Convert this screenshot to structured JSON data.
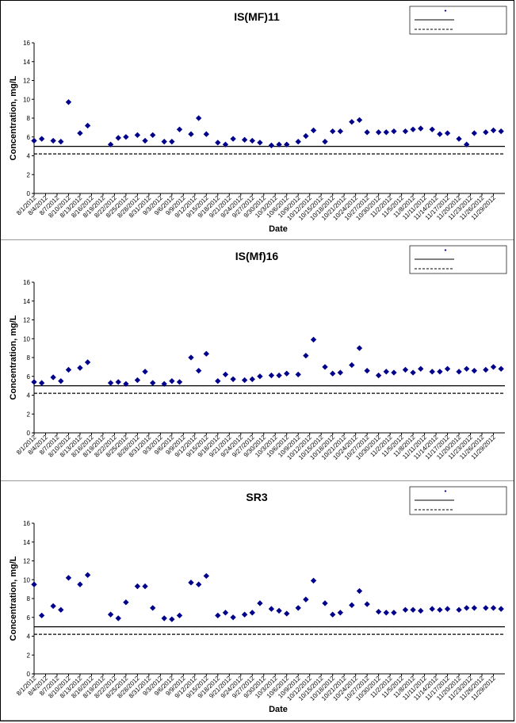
{
  "chart_data": [
    {
      "type": "scatter",
      "title": "IS(MF)11",
      "xlabel": "Date",
      "ylabel": "Concentration, mg/L",
      "ylim": [
        0,
        16
      ],
      "yticks": [
        0,
        2,
        4,
        6,
        8,
        10,
        12,
        14,
        16
      ],
      "x_tick_labels": [
        "8/1/2012",
        "8/4/2012",
        "8/7/2012",
        "8/10/2012",
        "8/13/2012",
        "8/16/2012",
        "8/19/2012",
        "8/22/2012",
        "8/25/2012",
        "8/28/2012",
        "8/31/2012",
        "9/3/2012",
        "9/6/2012",
        "9/9/2012",
        "9/12/2012",
        "9/15/2012",
        "9/18/2012",
        "9/21/2012",
        "9/24/2012",
        "9/27/2012",
        "9/30/2012",
        "10/3/2012",
        "10/6/2012",
        "10/9/2012",
        "10/12/2012",
        "10/15/2012",
        "10/18/2012",
        "10/21/2012",
        "10/24/2012",
        "10/27/2012",
        "10/30/2012",
        "11/2/2012",
        "11/5/2012",
        "11/8/2012",
        "11/11/2012",
        "11/14/2012",
        "11/17/2012",
        "11/20/2012",
        "11/23/2012",
        "11/26/2012",
        "11/29/2012"
      ],
      "legend": {
        "placement": "top-right",
        "entries": [
          "",
          "",
          ""
        ]
      },
      "ref_lines": [
        {
          "style": "solid",
          "y": 5.0
        },
        {
          "style": "dashed",
          "y": 4.2
        }
      ],
      "series": [
        {
          "x": [
            "8/1/2012",
            "8/3/2012",
            "8/6/2012",
            "8/8/2012",
            "8/10/2012",
            "8/13/2012",
            "8/15/2012",
            "8/21/2012",
            "8/23/2012",
            "8/25/2012",
            "8/28/2012",
            "8/30/2012",
            "9/1/2012",
            "9/4/2012",
            "9/6/2012",
            "9/8/2012",
            "9/11/2012",
            "9/13/2012",
            "9/15/2012",
            "9/18/2012",
            "9/20/2012",
            "9/22/2012",
            "9/25/2012",
            "9/27/2012",
            "9/29/2012",
            "10/2/2012",
            "10/4/2012",
            "10/6/2012",
            "10/9/2012",
            "10/11/2012",
            "10/13/2012",
            "10/16/2012",
            "10/18/2012",
            "10/20/2012",
            "10/23/2012",
            "10/25/2012",
            "10/27/2012",
            "10/30/2012",
            "11/1/2012",
            "11/3/2012",
            "11/6/2012",
            "11/8/2012",
            "11/10/2012",
            "11/13/2012",
            "11/15/2012",
            "11/17/2012",
            "11/20/2012",
            "11/22/2012",
            "11/24/2012",
            "11/27/2012",
            "11/29/2012",
            "12/1/2012"
          ],
          "y": [
            5.6,
            5.8,
            5.6,
            5.5,
            9.7,
            6.4,
            7.2,
            5.2,
            5.9,
            6.0,
            6.2,
            5.6,
            6.2,
            5.5,
            5.5,
            6.8,
            6.3,
            8.0,
            6.3,
            5.4,
            5.2,
            5.8,
            5.7,
            5.6,
            5.4,
            5.1,
            5.2,
            5.2,
            5.5,
            6.1,
            6.7,
            5.5,
            6.6,
            6.6,
            7.6,
            7.8,
            6.5,
            6.5,
            6.5,
            6.6,
            6.6,
            6.8,
            6.9,
            6.8,
            6.3,
            6.4,
            5.8,
            5.2,
            6.4,
            6.5,
            6.7,
            6.6
          ]
        }
      ]
    },
    {
      "type": "scatter",
      "title": "IS(Mf)16",
      "xlabel": "",
      "ylabel": "Concentration, mg/L",
      "ylim": [
        0,
        16
      ],
      "yticks": [
        0,
        2,
        4,
        6,
        8,
        10,
        12,
        14,
        16
      ],
      "x_tick_labels": [
        "8/1/2012",
        "8/4/2012",
        "8/7/2012",
        "8/10/2012",
        "8/13/2012",
        "8/16/2012",
        "8/19/2012",
        "8/22/2012",
        "8/25/2012",
        "8/28/2012",
        "8/31/2012",
        "9/3/2012",
        "9/6/2012",
        "9/9/2012",
        "9/12/2012",
        "9/15/2012",
        "9/18/2012",
        "9/21/2012",
        "9/24/2012",
        "9/27/2012",
        "9/30/2012",
        "10/3/2012",
        "10/6/2012",
        "10/9/2012",
        "10/12/2012",
        "10/15/2012",
        "10/18/2012",
        "10/21/2012",
        "10/24/2012",
        "10/27/2012",
        "10/30/2012",
        "11/2/2012",
        "11/5/2012",
        "11/8/2012",
        "11/11/2012",
        "11/14/2012",
        "11/17/2012",
        "11/20/2012",
        "11/23/2012",
        "11/26/2012",
        "11/29/2012"
      ],
      "legend": {
        "placement": "top-right",
        "entries": [
          "",
          "",
          ""
        ]
      },
      "ref_lines": [
        {
          "style": "solid",
          "y": 5.0
        },
        {
          "style": "dashed",
          "y": 4.2
        }
      ],
      "series": [
        {
          "x": [
            "8/1/2012",
            "8/3/2012",
            "8/6/2012",
            "8/8/2012",
            "8/10/2012",
            "8/13/2012",
            "8/15/2012",
            "8/21/2012",
            "8/23/2012",
            "8/25/2012",
            "8/28/2012",
            "8/30/2012",
            "9/1/2012",
            "9/4/2012",
            "9/6/2012",
            "9/8/2012",
            "9/11/2012",
            "9/13/2012",
            "9/15/2012",
            "9/18/2012",
            "9/20/2012",
            "9/22/2012",
            "9/25/2012",
            "9/27/2012",
            "9/29/2012",
            "10/2/2012",
            "10/4/2012",
            "10/6/2012",
            "10/9/2012",
            "10/11/2012",
            "10/13/2012",
            "10/16/2012",
            "10/18/2012",
            "10/20/2012",
            "10/23/2012",
            "10/25/2012",
            "10/27/2012",
            "10/30/2012",
            "11/1/2012",
            "11/3/2012",
            "11/6/2012",
            "11/8/2012",
            "11/10/2012",
            "11/13/2012",
            "11/15/2012",
            "11/17/2012",
            "11/20/2012",
            "11/22/2012",
            "11/24/2012",
            "11/27/2012",
            "11/29/2012",
            "12/1/2012"
          ],
          "y": [
            5.4,
            5.3,
            5.9,
            5.5,
            6.7,
            6.9,
            7.5,
            5.3,
            5.4,
            5.2,
            5.6,
            6.5,
            5.3,
            5.2,
            5.5,
            5.4,
            8.0,
            6.6,
            8.4,
            5.5,
            6.2,
            5.7,
            5.6,
            5.7,
            6.0,
            6.1,
            6.1,
            6.3,
            6.2,
            8.2,
            9.9,
            7.0,
            6.3,
            6.4,
            7.2,
            9.0,
            6.6,
            6.1,
            6.5,
            6.4,
            6.7,
            6.4,
            6.8,
            6.5,
            6.5,
            6.8,
            6.5,
            6.8,
            6.6,
            6.7,
            7.0,
            6.8
          ]
        }
      ]
    },
    {
      "type": "scatter",
      "title": "SR3",
      "xlabel": "Date",
      "ylabel": "Concentration, mg/L",
      "ylim": [
        0,
        16
      ],
      "yticks": [
        0,
        2,
        4,
        6,
        8,
        10,
        12,
        14,
        16
      ],
      "x_tick_labels": [
        "8/1/2012",
        "8/4/2012",
        "8/7/2012",
        "8/10/2012",
        "8/13/2012",
        "8/16/2012",
        "8/19/2012",
        "8/22/2012",
        "8/25/2012",
        "8/28/2012",
        "8/31/2012",
        "9/3/2012",
        "9/6/2012",
        "9/9/2012",
        "9/12/2012",
        "9/15/2012",
        "9/18/2012",
        "9/21/2012",
        "9/24/2012",
        "9/27/2012",
        "9/30/2012",
        "10/3/2012",
        "10/6/2012",
        "10/9/2012",
        "10/12/2012",
        "10/15/2012",
        "10/18/2012",
        "10/21/2012",
        "10/24/2012",
        "10/27/2012",
        "10/30/2012",
        "11/2/2012",
        "11/5/2012",
        "11/8/2012",
        "11/11/2012",
        "11/14/2012",
        "11/17/2012",
        "11/20/2012",
        "11/23/2012",
        "11/26/2012",
        "11/29/2012"
      ],
      "legend": {
        "placement": "top-right",
        "entries": [
          "",
          "",
          ""
        ]
      },
      "ref_lines": [
        {
          "style": "solid",
          "y": 5.0
        },
        {
          "style": "dashed",
          "y": 4.2
        }
      ],
      "series": [
        {
          "x": [
            "8/1/2012",
            "8/3/2012",
            "8/6/2012",
            "8/8/2012",
            "8/10/2012",
            "8/13/2012",
            "8/15/2012",
            "8/21/2012",
            "8/23/2012",
            "8/25/2012",
            "8/28/2012",
            "8/30/2012",
            "9/1/2012",
            "9/4/2012",
            "9/6/2012",
            "9/8/2012",
            "9/11/2012",
            "9/13/2012",
            "9/15/2012",
            "9/18/2012",
            "9/20/2012",
            "9/22/2012",
            "9/25/2012",
            "9/27/2012",
            "9/29/2012",
            "10/2/2012",
            "10/4/2012",
            "10/6/2012",
            "10/9/2012",
            "10/11/2012",
            "10/13/2012",
            "10/16/2012",
            "10/18/2012",
            "10/20/2012",
            "10/23/2012",
            "10/25/2012",
            "10/27/2012",
            "10/30/2012",
            "11/1/2012",
            "11/3/2012",
            "11/6/2012",
            "11/8/2012",
            "11/10/2012",
            "11/13/2012",
            "11/15/2012",
            "11/17/2012",
            "11/20/2012",
            "11/22/2012",
            "11/24/2012",
            "11/27/2012",
            "11/29/2012",
            "12/1/2012"
          ],
          "y": [
            9.5,
            6.2,
            7.2,
            6.8,
            10.2,
            9.5,
            10.5,
            6.3,
            5.9,
            7.6,
            9.3,
            9.3,
            7.0,
            5.9,
            5.8,
            6.2,
            9.7,
            9.5,
            10.4,
            6.2,
            6.5,
            6.0,
            6.3,
            6.5,
            7.5,
            6.9,
            6.7,
            6.4,
            7.0,
            7.9,
            9.9,
            7.5,
            6.3,
            6.5,
            7.3,
            8.8,
            7.4,
            6.6,
            6.5,
            6.5,
            6.8,
            6.8,
            6.7,
            6.9,
            6.8,
            6.9,
            6.8,
            7.0,
            7.0,
            7.0,
            7.0,
            6.9
          ]
        }
      ]
    }
  ],
  "marker_color": "#00008B"
}
